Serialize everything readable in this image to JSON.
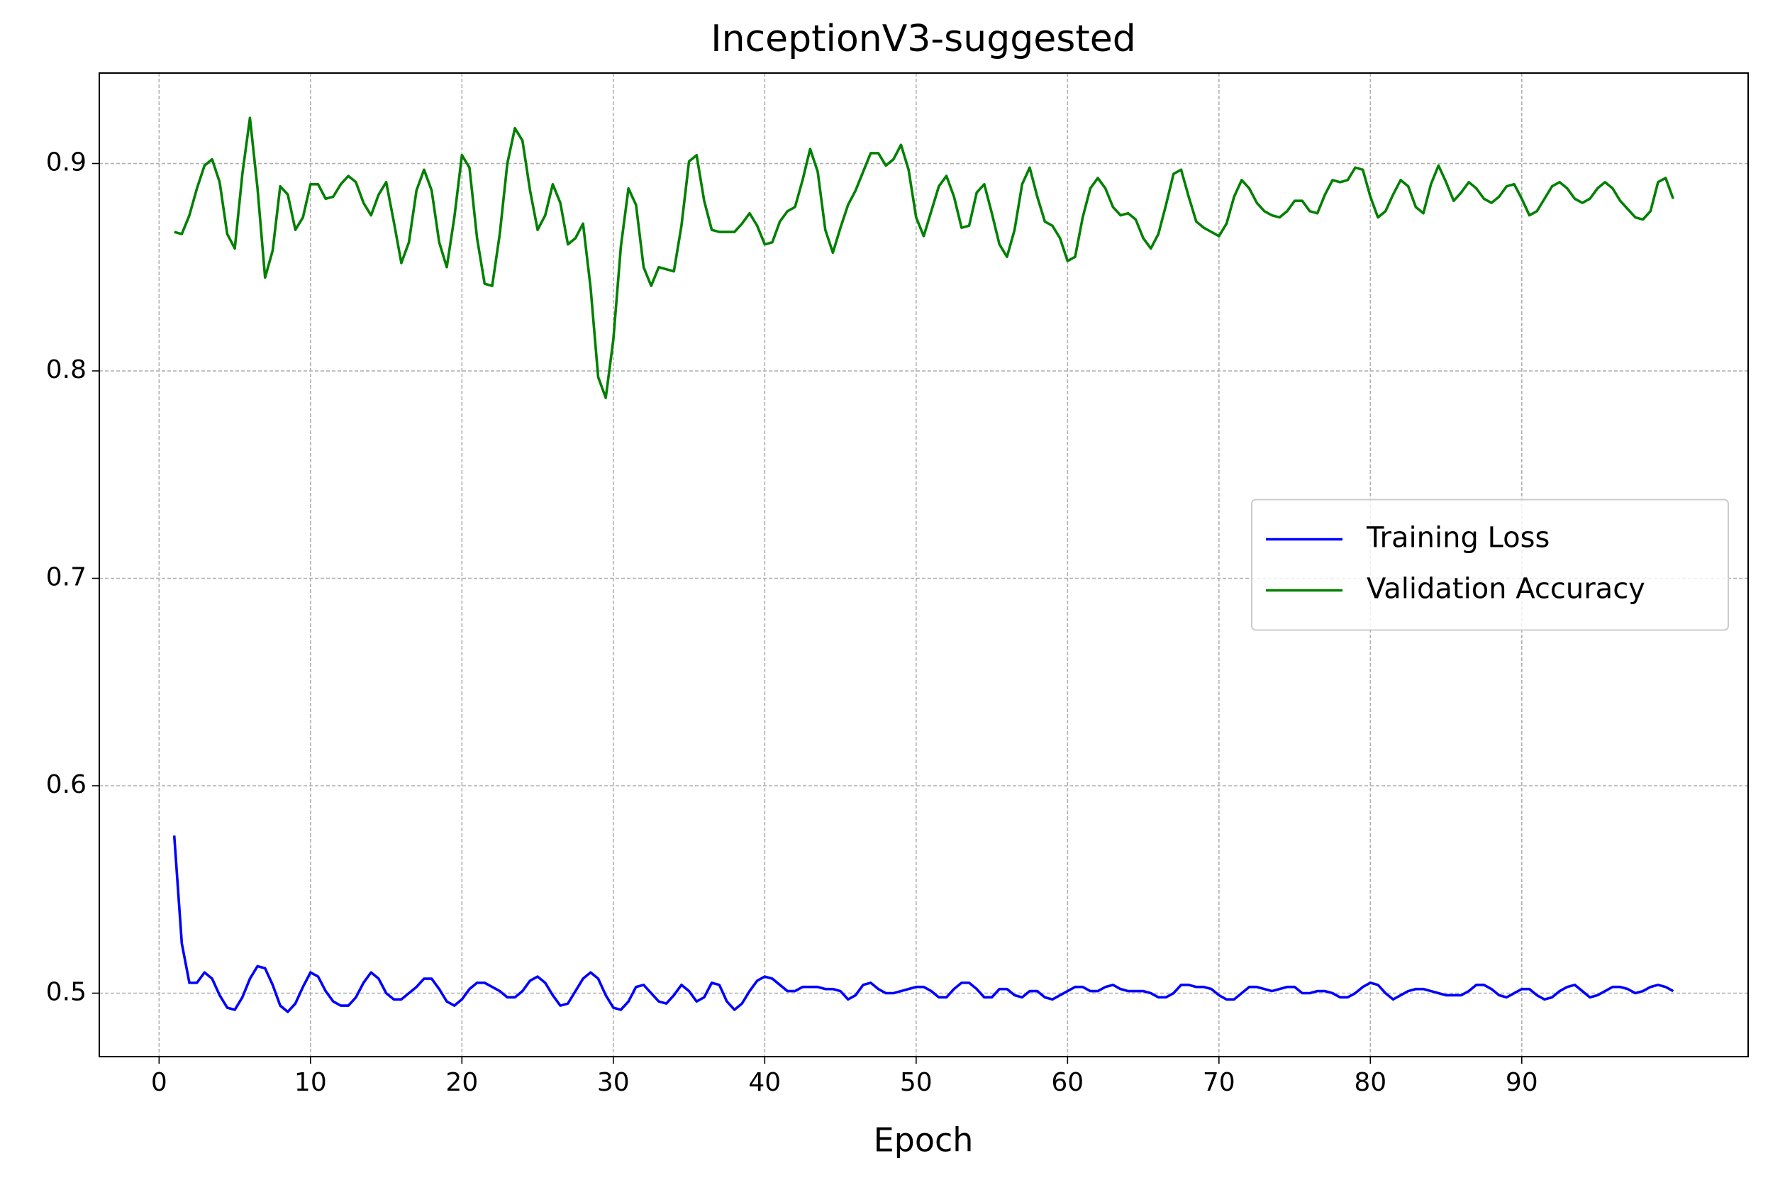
{
  "chart_data": {
    "type": "line",
    "title": "InceptionV3-suggested",
    "x_label": "Epoch",
    "x": [
      1,
      1.5,
      2,
      2.5,
      3,
      3.5,
      4,
      4.5,
      5,
      5.5,
      6,
      6.5,
      7,
      7.5,
      8,
      8.5,
      9,
      9.5,
      10,
      10.5,
      11,
      11.5,
      12,
      12.5,
      13,
      13.5,
      14,
      14.5,
      15,
      15.5,
      16,
      16.5,
      17,
      17.5,
      18,
      18.5,
      19,
      19.5,
      20,
      20.5,
      21,
      21.5,
      22,
      22.5,
      23,
      23.5,
      24,
      24.5,
      25,
      25.5,
      26,
      26.5,
      27,
      27.5,
      28,
      28.5,
      29,
      29.5,
      30,
      30.5,
      31,
      31.5,
      32,
      32.5,
      33,
      33.5,
      34,
      34.5,
      35,
      35.5,
      36,
      36.5,
      37,
      37.5,
      38,
      38.5,
      39,
      39.5,
      40,
      40.5,
      41,
      41.5,
      42,
      42.5,
      43,
      43.5,
      44,
      44.5,
      45,
      45.5,
      46,
      46.5,
      47,
      47.5,
      48,
      48.5,
      49,
      49.5,
      50,
      50.5,
      51,
      51.5,
      52,
      52.5,
      53,
      53.5,
      54,
      54.5,
      55,
      55.5,
      56,
      56.5,
      57,
      57.5,
      58,
      58.5,
      59,
      59.5,
      60,
      60.5,
      61,
      61.5,
      62,
      62.5,
      63,
      63.5,
      64,
      64.5,
      65,
      65.5,
      66,
      66.5,
      67,
      67.5,
      68,
      68.5,
      69,
      69.5,
      70,
      70.5,
      71,
      71.5,
      72,
      72.5,
      73,
      73.5,
      74,
      74.5,
      75,
      75.5,
      76,
      76.5,
      77,
      77.5,
      78,
      78.5,
      79,
      79.5,
      80,
      80.5,
      81,
      81.5,
      82,
      82.5,
      83,
      83.5,
      84,
      84.5,
      85,
      85.5,
      86,
      86.5,
      87,
      87.5,
      88,
      88.5,
      89,
      89.5,
      90,
      90.5,
      91,
      91.5,
      92,
      92.5,
      93,
      93.5,
      94,
      94.5,
      95,
      95.5,
      96,
      96.5,
      97,
      97.5,
      98,
      98.5,
      99,
      99.5,
      100
    ],
    "series": [
      {
        "name": "Training Loss",
        "color": "#0000ff",
        "values": [
          0.576,
          0.524,
          0.505,
          0.505,
          0.51,
          0.507,
          0.499,
          0.493,
          0.492,
          0.498,
          0.507,
          0.513,
          0.512,
          0.504,
          0.494,
          0.491,
          0.495,
          0.503,
          0.51,
          0.508,
          0.501,
          0.496,
          0.494,
          0.494,
          0.498,
          0.505,
          0.51,
          0.507,
          0.5,
          0.497,
          0.497,
          0.5,
          0.503,
          0.507,
          0.507,
          0.502,
          0.496,
          0.494,
          0.497,
          0.502,
          0.505,
          0.505,
          0.503,
          0.501,
          0.498,
          0.498,
          0.501,
          0.506,
          0.508,
          0.505,
          0.499,
          0.494,
          0.495,
          0.501,
          0.507,
          0.51,
          0.507,
          0.499,
          0.493,
          0.492,
          0.496,
          0.503,
          0.504,
          0.5,
          0.496,
          0.495,
          0.499,
          0.504,
          0.501,
          0.496,
          0.498,
          0.505,
          0.504,
          0.496,
          0.492,
          0.495,
          0.501,
          0.506,
          0.508,
          0.507,
          0.504,
          0.501,
          0.501,
          0.503,
          0.503,
          0.503,
          0.502,
          0.502,
          0.501,
          0.497,
          0.499,
          0.504,
          0.505,
          0.502,
          0.5,
          0.5,
          0.501,
          0.502,
          0.503,
          0.503,
          0.501,
          0.498,
          0.498,
          0.502,
          0.505,
          0.505,
          0.502,
          0.498,
          0.498,
          0.502,
          0.502,
          0.499,
          0.498,
          0.501,
          0.501,
          0.498,
          0.497,
          0.499,
          0.501,
          0.503,
          0.503,
          0.501,
          0.501,
          0.503,
          0.504,
          0.502,
          0.501,
          0.501,
          0.501,
          0.5,
          0.498,
          0.498,
          0.5,
          0.504,
          0.504,
          0.503,
          0.503,
          0.502,
          0.499,
          0.497,
          0.497,
          0.5,
          0.503,
          0.503,
          0.502,
          0.501,
          0.502,
          0.503,
          0.503,
          0.5,
          0.5,
          0.501,
          0.501,
          0.5,
          0.498,
          0.498,
          0.5,
          0.503,
          0.505,
          0.504,
          0.5,
          0.497,
          0.499,
          0.501,
          0.502,
          0.502,
          0.501,
          0.5,
          0.499,
          0.499,
          0.499,
          0.501,
          0.504,
          0.504,
          0.502,
          0.499,
          0.498,
          0.5,
          0.502,
          0.502,
          0.499,
          0.497,
          0.498,
          0.501,
          0.503,
          0.504,
          0.501,
          0.498,
          0.499,
          0.501,
          0.503,
          0.503,
          0.502,
          0.5,
          0.501,
          0.503,
          0.504,
          0.503,
          0.501
        ]
      },
      {
        "name": "Validation Accuracy",
        "color": "#008000",
        "values": [
          0.867,
          0.866,
          0.875,
          0.888,
          0.899,
          0.902,
          0.891,
          0.866,
          0.859,
          0.895,
          0.922,
          0.888,
          0.845,
          0.858,
          0.889,
          0.885,
          0.868,
          0.874,
          0.89,
          0.89,
          0.883,
          0.884,
          0.89,
          0.894,
          0.891,
          0.881,
          0.875,
          0.885,
          0.891,
          0.872,
          0.852,
          0.862,
          0.887,
          0.897,
          0.887,
          0.862,
          0.85,
          0.874,
          0.904,
          0.898,
          0.864,
          0.842,
          0.841,
          0.866,
          0.9,
          0.917,
          0.911,
          0.887,
          0.868,
          0.875,
          0.89,
          0.881,
          0.861,
          0.864,
          0.871,
          0.84,
          0.797,
          0.787,
          0.815,
          0.86,
          0.888,
          0.88,
          0.85,
          0.841,
          0.85,
          0.849,
          0.848,
          0.87,
          0.901,
          0.904,
          0.882,
          0.868,
          0.867,
          0.867,
          0.867,
          0.871,
          0.876,
          0.87,
          0.861,
          0.862,
          0.872,
          0.877,
          0.879,
          0.892,
          0.907,
          0.896,
          0.868,
          0.857,
          0.869,
          0.88,
          0.887,
          0.896,
          0.905,
          0.905,
          0.899,
          0.902,
          0.909,
          0.897,
          0.874,
          0.865,
          0.877,
          0.889,
          0.894,
          0.884,
          0.869,
          0.87,
          0.886,
          0.89,
          0.876,
          0.861,
          0.855,
          0.868,
          0.89,
          0.898,
          0.884,
          0.872,
          0.87,
          0.864,
          0.853,
          0.855,
          0.874,
          0.888,
          0.893,
          0.888,
          0.879,
          0.875,
          0.876,
          0.873,
          0.864,
          0.859,
          0.866,
          0.88,
          0.895,
          0.897,
          0.884,
          0.872,
          0.869,
          0.867,
          0.865,
          0.871,
          0.884,
          0.892,
          0.888,
          0.881,
          0.877,
          0.875,
          0.874,
          0.877,
          0.882,
          0.882,
          0.877,
          0.876,
          0.885,
          0.892,
          0.891,
          0.892,
          0.898,
          0.897,
          0.884,
          0.874,
          0.877,
          0.885,
          0.892,
          0.889,
          0.879,
          0.876,
          0.89,
          0.899,
          0.891,
          0.882,
          0.886,
          0.891,
          0.888,
          0.883,
          0.881,
          0.884,
          0.889,
          0.89,
          0.883,
          0.875,
          0.877,
          0.883,
          0.889,
          0.891,
          0.888,
          0.883,
          0.881,
          0.883,
          0.888,
          0.891,
          0.888,
          0.882,
          0.878,
          0.874,
          0.873,
          0.877,
          0.891,
          0.893,
          0.883
        ]
      }
    ],
    "xlim": [
      -3.95,
      104.95
    ],
    "xticks": [
      0,
      10,
      20,
      30,
      40,
      50,
      60,
      70,
      80,
      90
    ],
    "ylim": [
      0.4694,
      0.9436
    ],
    "yticks": [
      0.5,
      0.6,
      0.7,
      0.8,
      0.9
    ],
    "grid": true,
    "legend": "center right"
  }
}
